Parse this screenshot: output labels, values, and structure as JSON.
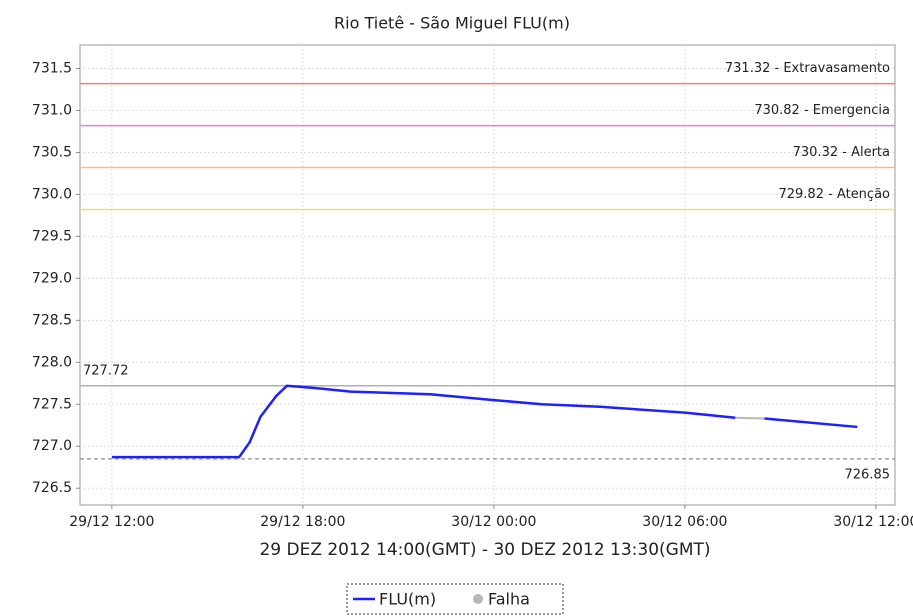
{
  "chart_data": {
    "type": "line",
    "title": "Rio Tietê - São Miguel FLU(m)",
    "xlabel": "29 DEZ 2012 14:00(GMT) - 30 DEZ 2012 13:30(GMT)",
    "x": [
      "29/12 12:00",
      "29/12 16:00",
      "29/12 16:20",
      "29/12 16:40",
      "29/12 17:10",
      "29/12 17:30",
      "29/12 18:30",
      "29/12 19:30",
      "29/12 22:00",
      "30/12 00:00",
      "30/12 01:30",
      "30/12 03:20",
      "30/12 06:00",
      "30/12 07:35",
      "30/12 08:00",
      "30/12 08:30",
      "30/12 11:25"
    ],
    "series": [
      {
        "name": "FLU(m)",
        "color": "#1f1fff",
        "values": [
          726.87,
          726.87,
          727.05,
          727.35,
          727.6,
          727.72,
          727.69,
          727.65,
          727.62,
          727.55,
          727.5,
          727.47,
          727.4,
          727.34,
          null,
          727.33,
          727.23
        ]
      },
      {
        "name": "Falha",
        "color": "#b8b8b8",
        "values": [
          null,
          null,
          null,
          null,
          null,
          null,
          null,
          null,
          null,
          null,
          null,
          null,
          null,
          727.34,
          727.335,
          727.33,
          null
        ]
      }
    ],
    "thresholds": [
      {
        "value": 731.32,
        "label": "731.32 - Extravasamento",
        "color": "#f08080"
      },
      {
        "value": 730.82,
        "label": "730.82 - Emergencia",
        "color": "#e080e0"
      },
      {
        "value": 730.32,
        "label": "730.32 - Alerta",
        "color": "#f5c080"
      },
      {
        "value": 729.82,
        "label": "729.82 - Atenção",
        "color": "#f0e070"
      },
      {
        "value": 727.72,
        "label": "727.72",
        "color": "#b0b0b0"
      },
      {
        "value": 726.85,
        "label": "726.85",
        "color": "#a0a0a0"
      }
    ],
    "xlim": [
      "29/12 11:00",
      "30/12 12:36"
    ],
    "xticks": [
      "29/12 12:00",
      "29/12 18:00",
      "30/12 00:00",
      "30/12 06:00",
      "30/12 12:00"
    ],
    "ylim": [
      726.3,
      731.78
    ],
    "yticks": [
      {
        "value": 726.5,
        "label": "726.5"
      },
      {
        "value": 727,
        "label": "727.0"
      },
      {
        "value": 727.5,
        "label": "727.5"
      },
      {
        "value": 728,
        "label": "728.0"
      },
      {
        "value": 728.5,
        "label": "728.5"
      },
      {
        "value": 729,
        "label": "729.0"
      },
      {
        "value": 729.5,
        "label": "729.5"
      },
      {
        "value": 730,
        "label": "730.0"
      },
      {
        "value": 730.5,
        "label": "730.5"
      },
      {
        "value": 731,
        "label": "731.0"
      },
      {
        "value": 731.5,
        "label": "731.5"
      }
    ],
    "grid": true,
    "legend": "bottom"
  }
}
